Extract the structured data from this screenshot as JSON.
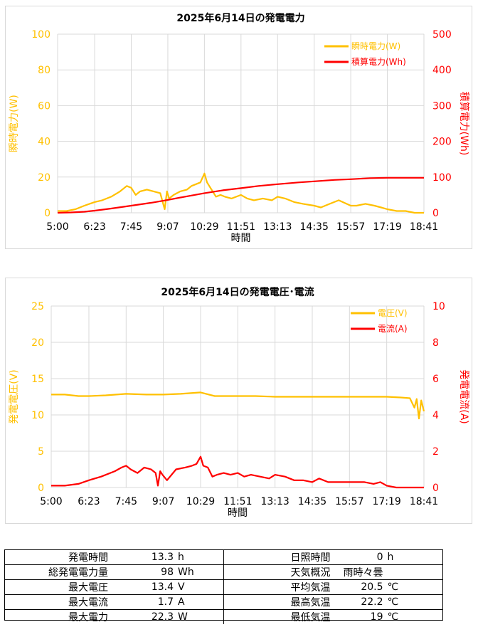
{
  "colors": {
    "instant": "#FFC000",
    "cumulative": "#FF0000",
    "grid": "#d9d9d9",
    "axis_left": "#FFC000",
    "axis_right": "#FF0000"
  },
  "x_tick_labels": [
    "5:00",
    "6:23",
    "7:45",
    "9:07",
    "10:29",
    "11:51",
    "13:13",
    "14:35",
    "15:57",
    "17:19",
    "18:41"
  ],
  "chart_data": [
    {
      "type": "line",
      "title": "2025年6月14日の発電電力",
      "xlabel": "時間",
      "ylabel": "瞬時電力(W)",
      "y2label": "積算電力(Wh)",
      "ylim": [
        0,
        100
      ],
      "y2lim": [
        0,
        500
      ],
      "yticks": [
        0,
        20,
        40,
        60,
        80,
        100
      ],
      "y2ticks": [
        0,
        100,
        200,
        300,
        400,
        500
      ],
      "xlim_minutes": [
        300,
        1121
      ],
      "legend_position": "top-right",
      "series": [
        {
          "name": "瞬時電力(W)",
          "axis": "left",
          "color": "#FFC000",
          "x": [
            "5:00",
            "5:20",
            "5:40",
            "6:00",
            "6:23",
            "6:40",
            "7:00",
            "7:20",
            "7:35",
            "7:45",
            "7:55",
            "8:05",
            "8:20",
            "8:35",
            "8:50",
            "9:00",
            "9:05",
            "9:10",
            "9:20",
            "9:35",
            "9:50",
            "10:00",
            "10:10",
            "10:20",
            "10:29",
            "10:35",
            "10:45",
            "10:55",
            "11:05",
            "11:15",
            "11:30",
            "11:51",
            "12:05",
            "12:20",
            "12:40",
            "13:00",
            "13:13",
            "13:30",
            "13:50",
            "14:10",
            "14:35",
            "14:50",
            "15:10",
            "15:30",
            "15:57",
            "16:10",
            "16:30",
            "16:50",
            "17:05",
            "17:19",
            "17:40",
            "18:00",
            "18:20",
            "18:41"
          ],
          "y": [
            1,
            1,
            2,
            4,
            6,
            7,
            9,
            12,
            15,
            14,
            10,
            12,
            13,
            12,
            11,
            2,
            12,
            8,
            10,
            12,
            13,
            15,
            16,
            17,
            22,
            17,
            13,
            9,
            10,
            9,
            8,
            10,
            8,
            7,
            8,
            7,
            9,
            8,
            6,
            5,
            4,
            3,
            5,
            7,
            4,
            4,
            5,
            4,
            3,
            2,
            1,
            1,
            0,
            0
          ]
        },
        {
          "name": "積算電力(Wh)",
          "axis": "right",
          "color": "#FF0000",
          "x": [
            "5:00",
            "5:30",
            "6:00",
            "6:23",
            "7:00",
            "7:45",
            "8:30",
            "9:07",
            "9:45",
            "10:29",
            "11:10",
            "11:51",
            "12:30",
            "13:13",
            "14:00",
            "14:35",
            "15:20",
            "15:57",
            "16:40",
            "17:19",
            "18:00",
            "18:41"
          ],
          "y": [
            0,
            1,
            3,
            6,
            12,
            20,
            28,
            36,
            45,
            55,
            63,
            69,
            75,
            80,
            85,
            88,
            92,
            94,
            97,
            98,
            98,
            98
          ]
        }
      ]
    },
    {
      "type": "line",
      "title": "2025年6月14日の発電電圧･電流",
      "xlabel": "時間",
      "ylabel": "発電電圧(V)",
      "y2label": "発電電流(A)",
      "ylim": [
        0,
        25
      ],
      "y2lim": [
        0,
        10
      ],
      "yticks": [
        0,
        5,
        10,
        15,
        20,
        25
      ],
      "y2ticks": [
        0,
        2,
        4,
        6,
        8,
        10
      ],
      "xlim_minutes": [
        300,
        1121
      ],
      "legend_position": "top-right",
      "series": [
        {
          "name": "電圧(V)",
          "axis": "left",
          "color": "#FFC000",
          "x": [
            "5:00",
            "5:30",
            "6:00",
            "6:23",
            "7:00",
            "7:45",
            "8:30",
            "9:07",
            "9:45",
            "10:29",
            "11:00",
            "11:51",
            "12:30",
            "13:13",
            "14:00",
            "14:35",
            "15:20",
            "15:57",
            "16:40",
            "17:19",
            "17:50",
            "18:10",
            "18:20",
            "18:25",
            "18:30",
            "18:35",
            "18:41"
          ],
          "y": [
            12.8,
            12.8,
            12.6,
            12.6,
            12.7,
            12.9,
            12.8,
            12.8,
            12.9,
            13.1,
            12.6,
            12.6,
            12.6,
            12.5,
            12.5,
            12.5,
            12.5,
            12.5,
            12.5,
            12.5,
            12.4,
            12.3,
            11.0,
            12.2,
            9.5,
            12.0,
            10.5
          ]
        },
        {
          "name": "電流(A)",
          "axis": "right",
          "color": "#FF0000",
          "x": [
            "5:00",
            "5:30",
            "6:00",
            "6:23",
            "6:50",
            "7:20",
            "7:35",
            "7:45",
            "7:55",
            "8:10",
            "8:25",
            "8:40",
            "8:50",
            "8:55",
            "9:00",
            "9:05",
            "9:15",
            "9:35",
            "9:55",
            "10:10",
            "10:20",
            "10:29",
            "10:35",
            "10:45",
            "10:55",
            "11:05",
            "11:20",
            "11:35",
            "11:51",
            "12:05",
            "12:20",
            "12:40",
            "13:00",
            "13:13",
            "13:35",
            "13:55",
            "14:15",
            "14:35",
            "14:50",
            "15:10",
            "15:30",
            "15:57",
            "16:10",
            "16:30",
            "16:50",
            "17:05",
            "17:19",
            "17:40",
            "18:00",
            "18:20",
            "18:41"
          ],
          "y": [
            0.1,
            0.1,
            0.2,
            0.4,
            0.6,
            0.9,
            1.1,
            1.2,
            1.0,
            0.8,
            1.1,
            1.0,
            0.8,
            0.1,
            0.9,
            0.7,
            0.4,
            1.0,
            1.1,
            1.2,
            1.3,
            1.7,
            1.2,
            1.1,
            0.6,
            0.7,
            0.8,
            0.7,
            0.8,
            0.6,
            0.7,
            0.6,
            0.5,
            0.7,
            0.6,
            0.4,
            0.4,
            0.3,
            0.5,
            0.3,
            0.3,
            0.3,
            0.3,
            0.3,
            0.2,
            0.3,
            0.1,
            0.0,
            0.0,
            0.0,
            0.0
          ]
        }
      ]
    }
  ],
  "summary": {
    "left": [
      {
        "label": "発電時間",
        "value": "13.3",
        "unit": "h"
      },
      {
        "label": "総発電電力量",
        "value": "98",
        "unit": "Wh"
      },
      {
        "label": "最大電圧",
        "value": "13.4",
        "unit": "V"
      },
      {
        "label": "最大電流",
        "value": "1.7",
        "unit": "A"
      },
      {
        "label": "最大電力",
        "value": "22.3",
        "unit": "W"
      }
    ],
    "right": [
      {
        "label": "日照時間",
        "value": "0",
        "unit": "h"
      },
      {
        "label": "天気概況",
        "value": "雨時々曇",
        "unit": ""
      },
      {
        "label": "平均気温",
        "value": "20.5",
        "unit": "℃"
      },
      {
        "label": "最高気温",
        "value": "22.2",
        "unit": "℃"
      },
      {
        "label": "最低気温",
        "value": "19",
        "unit": "℃"
      }
    ]
  }
}
